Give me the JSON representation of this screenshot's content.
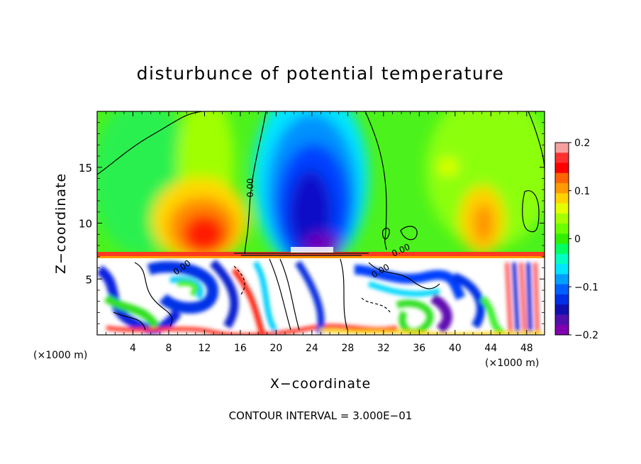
{
  "chart_data": {
    "type": "heatmap",
    "title": "disturbunce of potential temperature",
    "xlabel": "X−coordinate",
    "ylabel": "Z−coordinate",
    "x_unit_label": "(×1000 m)",
    "x_unit_label_right": "(×1000 m)",
    "xlim": [
      0,
      50
    ],
    "ylim": [
      0,
      20
    ],
    "x_ticks": [
      4,
      8,
      12,
      16,
      20,
      24,
      28,
      32,
      36,
      40,
      44,
      48
    ],
    "x_tick_labels": [
      "4",
      "8",
      "12",
      "16",
      "20",
      "24",
      "28",
      "32",
      "36",
      "40",
      "44",
      "48"
    ],
    "y_ticks": [
      5,
      10,
      15
    ],
    "y_tick_labels": [
      "5",
      "10",
      "15"
    ],
    "contour_labels": [
      "0.00",
      "0.00",
      "0.00",
      "0.00"
    ],
    "footer": "CONTOUR INTERVAL = 3.000E−01",
    "colorbar": {
      "range": [
        -0.2,
        0.2
      ],
      "ticks": [
        0.2,
        0.1,
        0,
        -0.1,
        -0.2
      ],
      "tick_labels": [
        "0.2",
        "0.1",
        "0",
        "−0.1",
        "−0.2"
      ],
      "colors": [
        "#f8a0a0",
        "#ff3030",
        "#ff0000",
        "#ff6400",
        "#ff9a00",
        "#ffd200",
        "#e6ff00",
        "#a6ff00",
        "#6cff00",
        "#30f000",
        "#00ff60",
        "#00ffc0",
        "#00e6ff",
        "#00a0ff",
        "#0060ff",
        "#0030e6",
        "#1010b0",
        "#5010b0",
        "#8000b0"
      ]
    },
    "regions": [
      {
        "name": "upper-background",
        "value": 0.0
      },
      {
        "name": "warm-plume-left",
        "x": 12,
        "z": 9.5,
        "value": 0.15
      },
      {
        "name": "warm-patch-right",
        "x": 44,
        "z": 11,
        "value": 0.1
      },
      {
        "name": "cold-plume-center",
        "x": 24,
        "z": 13,
        "value": -0.17
      },
      {
        "name": "inversion-band",
        "z": 7.2,
        "value": 0.2
      },
      {
        "name": "turbulent-lower-layer",
        "z": 3.5,
        "value": 0.0
      }
    ]
  }
}
